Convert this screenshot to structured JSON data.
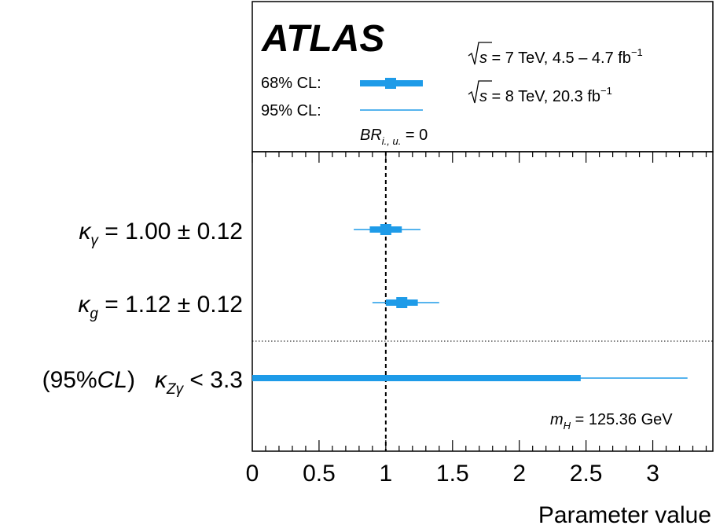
{
  "chart_data": {
    "type": "errorbar",
    "logo": "ATLAS",
    "legend": {
      "cl68_label": "68% CL:",
      "cl95_label": "95% CL:",
      "br_label": "BR",
      "br_sub": "i., u.",
      "br_value": " = 0"
    },
    "energy_lines": [
      {
        "s": "s",
        "text": " = 7 TeV, 4.5 – 4.7 fb",
        "sup": "−1"
      },
      {
        "s": "s",
        "text": " = 8 TeV, 20.3 fb",
        "sup": "−1"
      }
    ],
    "mass_label": {
      "m": "m",
      "sub": "H",
      "text": " = 125.36 GeV"
    },
    "xlabel": "Parameter value",
    "xlim": [
      0,
      3.45
    ],
    "xticks": [
      "0",
      "0.5",
      "1",
      "1.5",
      "2",
      "2.5",
      "3"
    ],
    "reference_line": 1,
    "parameters": [
      {
        "prefix": "",
        "kappa": "κ",
        "sub": "γ",
        "result": " = 1.00 ± 0.12",
        "central": 1.0,
        "cl68": [
          0.88,
          1.12
        ],
        "cl95": [
          0.76,
          1.26
        ]
      },
      {
        "prefix": "",
        "kappa": "κ",
        "sub": "g",
        "result": " = 1.12 ± 0.12",
        "central": 1.12,
        "cl68": [
          1.0,
          1.24
        ],
        "cl95": [
          0.9,
          1.4
        ]
      },
      {
        "prefix": "(95%",
        "prefix_italic": "CL",
        "prefix_end": ")",
        "kappa": "κ",
        "sub": "Zγ",
        "result": " < 3.3",
        "central": null,
        "cl68": [
          0,
          2.46
        ],
        "cl95": [
          0,
          3.26
        ]
      }
    ],
    "color": "#1e9be8"
  }
}
